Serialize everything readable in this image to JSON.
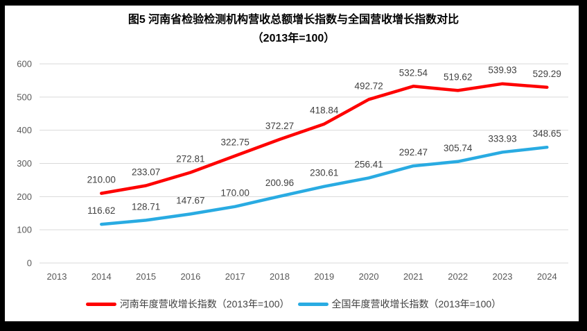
{
  "title": {
    "line1": "图5  河南省检验检测机构营收总额增长指数与全国营收增长指数对比",
    "line2": "（2013年=100）"
  },
  "chart_data": {
    "type": "line",
    "title": "图5 河南省检验检测机构营收总额增长指数与全国营收增长指数对比（2013年=100）",
    "categories": [
      "2013",
      "2014",
      "2015",
      "2016",
      "2017",
      "2018",
      "2019",
      "2020",
      "2021",
      "2022",
      "2023",
      "2024"
    ],
    "series": [
      {
        "name": "河南年度营收增长指数（2013年=100）",
        "color": "#FE0000",
        "start_index": 1,
        "values": [
          210.0,
          233.07,
          272.81,
          322.75,
          372.27,
          418.84,
          492.72,
          532.54,
          519.62,
          539.93,
          529.29
        ]
      },
      {
        "name": "全国年度营收增长指数（2013年=100）",
        "color": "#29ABE2",
        "start_index": 1,
        "values": [
          116.62,
          128.71,
          147.67,
          170.0,
          200.96,
          230.61,
          256.41,
          292.47,
          305.74,
          333.93,
          348.65
        ]
      }
    ],
    "ylim": [
      0,
      600
    ],
    "y_ticks": [
      0,
      100,
      200,
      300,
      400,
      500,
      600
    ],
    "grid": true,
    "gridline_color": "#D9D9D9",
    "axis_text_color": "#595959",
    "data_label_color": "#404040",
    "data_labels": true,
    "label_format": "0.00",
    "legend_position": "bottom"
  }
}
